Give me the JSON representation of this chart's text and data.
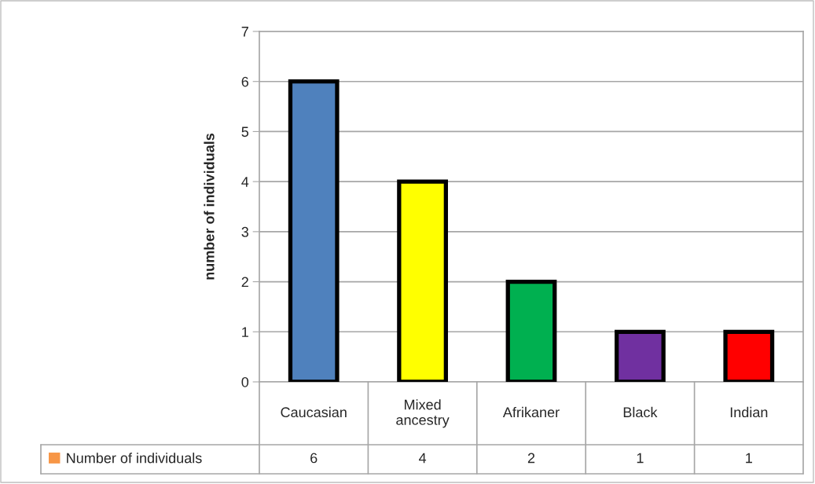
{
  "chart_data": {
    "type": "bar",
    "ylabel": "number of individuals",
    "categories": [
      "Caucasian",
      "Mixed\nancestry",
      "Afrikaner",
      "Black",
      "Indian"
    ],
    "series": [
      {
        "name": "Number of individuals",
        "color": "#f79646",
        "colors": [
          "#4f81bd",
          "#ffff00",
          "#00b050",
          "#7030a0",
          "#ff0000"
        ],
        "values": [
          6,
          4,
          2,
          1,
          1
        ]
      }
    ],
    "ylim": [
      0,
      7
    ],
    "yticks": [
      0,
      1,
      2,
      3,
      4,
      5,
      6,
      7
    ],
    "grid": "y",
    "legend": "bottom left",
    "data_labels": true
  }
}
